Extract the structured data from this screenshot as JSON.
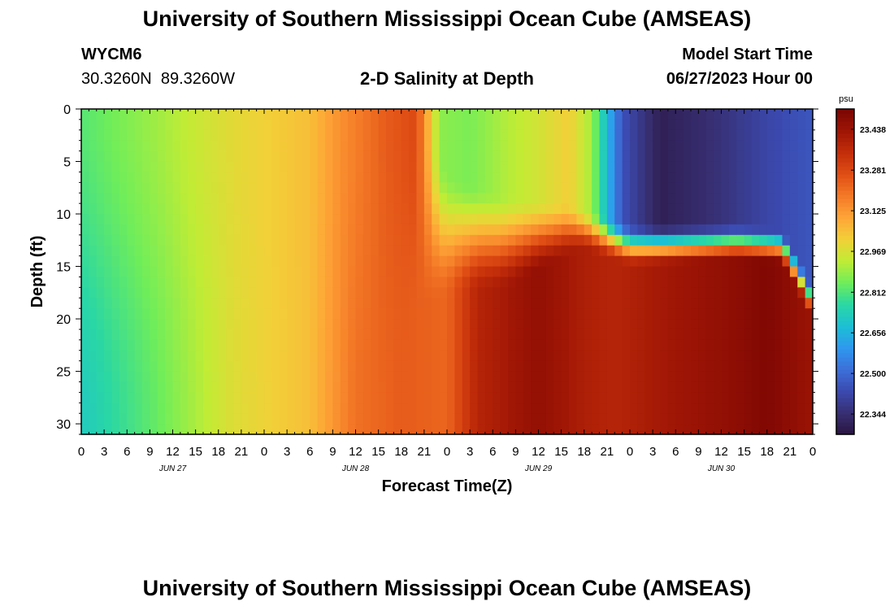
{
  "header": {
    "title": "University of Southern Mississippi Ocean Cube (AMSEAS)",
    "station_id": "WYCM6",
    "coords": "30.3260N  89.3260W",
    "subtitle": "2-D Salinity at Depth",
    "model_start_label": "Model Start Time",
    "model_start_value": "06/27/2023 Hour 00"
  },
  "footer": {
    "title": "University of Southern Mississippi Ocean Cube (AMSEAS)"
  },
  "chart_data": {
    "type": "heatmap",
    "title": "2-D Salinity at Depth",
    "xlabel": "Forecast Time(Z)",
    "ylabel": "Depth (ft)",
    "x_hours": [
      0,
      96
    ],
    "x_tick_step_hours": 3,
    "x_tick_labels": [
      "0",
      "3",
      "6",
      "9",
      "12",
      "15",
      "18",
      "21",
      "0",
      "3",
      "6",
      "9",
      "12",
      "15",
      "18",
      "21",
      "0",
      "3",
      "6",
      "9",
      "12",
      "15",
      "18",
      "21",
      "0",
      "3",
      "6",
      "9",
      "12",
      "15",
      "18",
      "21",
      "0"
    ],
    "date_labels": [
      {
        "text": "JUN 27",
        "hour": 12
      },
      {
        "text": "JUN 28",
        "hour": 36
      },
      {
        "text": "JUN 29",
        "hour": 60
      },
      {
        "text": "JUN 30",
        "hour": 84
      }
    ],
    "y_ticks": [
      0,
      5,
      10,
      15,
      20,
      25,
      30
    ],
    "ylim": [
      0,
      31
    ],
    "y_inverted": true,
    "colorbar": {
      "unit": "psu",
      "range": [
        22.266,
        23.516
      ],
      "tick_values": [
        23.438,
        23.281,
        23.125,
        22.969,
        22.812,
        22.656,
        22.5,
        22.344
      ],
      "tick_labels": [
        "23.438",
        "23.281",
        "23.125",
        "22.969",
        "22.812",
        "22.656",
        "22.500",
        "22.344"
      ],
      "colors": [
        "#2a1440",
        "#372f72",
        "#3b4ab0",
        "#3c6fd9",
        "#2f98f0",
        "#1cbfd5",
        "#2ad7a4",
        "#6fed5a",
        "#c1ec35",
        "#f2d038",
        "#fea537",
        "#f47a27",
        "#e04e15",
        "#c32e0a",
        "#9e1505",
        "#7a0503"
      ]
    },
    "surface_profile": [
      {
        "hour": 0,
        "value": 22.82
      },
      {
        "hour": 10,
        "value": 22.9
      },
      {
        "hour": 20,
        "value": 22.99
      },
      {
        "hour": 30,
        "value": 23.05
      },
      {
        "hour": 34,
        "value": 23.14
      },
      {
        "hour": 40,
        "value": 23.24
      },
      {
        "hour": 44,
        "value": 23.28
      },
      {
        "hour": 47,
        "value": 22.88
      },
      {
        "hour": 51,
        "value": 22.86
      },
      {
        "hour": 56,
        "value": 22.92
      },
      {
        "hour": 60,
        "value": 22.96
      },
      {
        "hour": 64,
        "value": 23.02
      },
      {
        "hour": 67,
        "value": 22.9
      },
      {
        "hour": 71,
        "value": 22.45
      },
      {
        "hour": 76,
        "value": 22.3
      },
      {
        "hour": 84,
        "value": 22.36
      },
      {
        "hour": 90,
        "value": 22.42
      },
      {
        "hour": 96,
        "value": 22.46
      }
    ],
    "bottom_profile": [
      {
        "hour": 0,
        "value": 22.72
      },
      {
        "hour": 10,
        "value": 22.84
      },
      {
        "hour": 20,
        "value": 22.98
      },
      {
        "hour": 30,
        "value": 23.05
      },
      {
        "hour": 36,
        "value": 23.2
      },
      {
        "hour": 42,
        "value": 23.24
      },
      {
        "hour": 48,
        "value": 23.22
      },
      {
        "hour": 52,
        "value": 23.38
      },
      {
        "hour": 60,
        "value": 23.46
      },
      {
        "hour": 66,
        "value": 23.4
      },
      {
        "hour": 70,
        "value": 23.38
      },
      {
        "hour": 76,
        "value": 23.42
      },
      {
        "hour": 84,
        "value": 23.46
      },
      {
        "hour": 90,
        "value": 23.5
      },
      {
        "hour": 96,
        "value": 23.44
      }
    ],
    "halocline_depth_ft": [
      {
        "hour": 0,
        "value": 0
      },
      {
        "hour": 42,
        "value": 0
      },
      {
        "hour": 45,
        "value": 1.5
      },
      {
        "hour": 48,
        "value": 6
      },
      {
        "hour": 55,
        "value": 8
      },
      {
        "hour": 64,
        "value": 9
      },
      {
        "hour": 68,
        "value": 10
      },
      {
        "hour": 72,
        "value": 11
      },
      {
        "hour": 86,
        "value": 11
      },
      {
        "hour": 92,
        "value": 11.5
      },
      {
        "hour": 96,
        "value": 17
      }
    ],
    "halocline_thickness_ft": [
      {
        "hour": 0,
        "value": 31
      },
      {
        "hour": 38,
        "value": 30
      },
      {
        "hour": 44,
        "value": 20
      },
      {
        "hour": 48,
        "value": 12
      },
      {
        "hour": 56,
        "value": 9
      },
      {
        "hour": 66,
        "value": 4
      },
      {
        "hour": 72,
        "value": 4
      },
      {
        "hour": 96,
        "value": 3
      }
    ]
  }
}
